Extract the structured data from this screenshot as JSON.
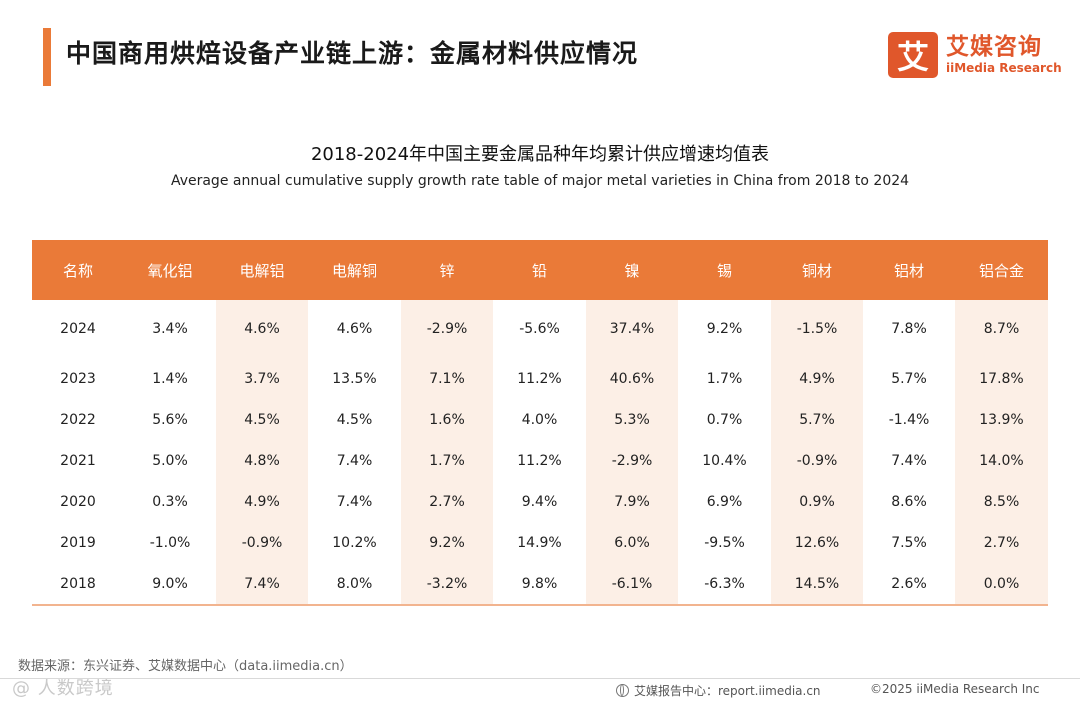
{
  "header": {
    "title": "中国商用烘焙设备产业链上游：金属材料供应情况",
    "logo_mark": "艾",
    "logo_cn": "艾媒咨询",
    "logo_en": "iiMedia Research"
  },
  "chart_title": "2018-2024年中国主要金属品种年均累计供应增速均值表",
  "chart_subtitle": "Average annual cumulative supply growth rate table of major metal varieties in China from 2018 to 2024",
  "table": {
    "headers": [
      "名称",
      "氧化铝",
      "电解铝",
      "电解铜",
      "锌",
      "铅",
      "镍",
      "锡",
      "铜材",
      "铝材",
      "铝合金"
    ],
    "rows": [
      [
        "2024",
        "3.4%",
        "4.6%",
        "4.6%",
        "-2.9%",
        "-5.6%",
        "37.4%",
        "9.2%",
        "-1.5%",
        "7.8%",
        "8.7%"
      ],
      [
        "2023",
        "1.4%",
        "3.7%",
        "13.5%",
        "7.1%",
        "11.2%",
        "40.6%",
        "1.7%",
        "4.9%",
        "5.7%",
        "17.8%"
      ],
      [
        "2022",
        "5.6%",
        "4.5%",
        "4.5%",
        "1.6%",
        "4.0%",
        "5.3%",
        "0.7%",
        "5.7%",
        "-1.4%",
        "13.9%"
      ],
      [
        "2021",
        "5.0%",
        "4.8%",
        "7.4%",
        "1.7%",
        "11.2%",
        "-2.9%",
        "10.4%",
        "-0.9%",
        "7.4%",
        "14.0%"
      ],
      [
        "2020",
        "0.3%",
        "4.9%",
        "7.4%",
        "2.7%",
        "9.4%",
        "7.9%",
        "6.9%",
        "0.9%",
        "8.6%",
        "8.5%"
      ],
      [
        "2019",
        "-1.0%",
        "-0.9%",
        "10.2%",
        "9.2%",
        "14.9%",
        "6.0%",
        "-9.5%",
        "12.6%",
        "7.5%",
        "2.7%"
      ],
      [
        "2018",
        "9.0%",
        "7.4%",
        "8.0%",
        "-3.2%",
        "9.8%",
        "-6.1%",
        "-6.3%",
        "14.5%",
        "2.6%",
        "0.0%"
      ]
    ]
  },
  "footer": {
    "source": "数据来源：东兴证券、艾媒数据中心（data.iimedia.cn）",
    "watermark": "@ 人数跨境",
    "report_site": "艾媒报告中心：report.iimedia.cn",
    "copyright": "©2025 iiMedia Research Inc"
  },
  "colors": {
    "accent": "#ea7a38",
    "brand": "#e0572b",
    "shade": "#fcefe6"
  }
}
